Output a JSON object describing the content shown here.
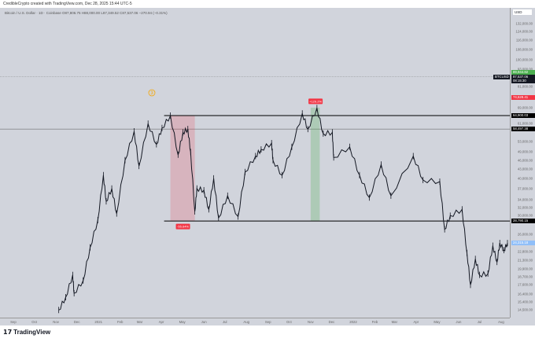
{
  "credit": "CredibleCrypto created with TradingView.com, Dec 28, 2025 15:44 UTC-5",
  "legend": "Bitcoin / U.S. Dollar · 1D · Coinbase  O87,806.75 H88,000.00 L87,349.52 C87,537.06 −270.94 (−0.31%)",
  "currency": "USD",
  "brand": "TradingView",
  "y_ticks": [
    "132,000.00",
    "124,000.00",
    "116,000.00",
    "108,000.00",
    "100,000.00",
    "93,000.00",
    "81,000.00",
    "69,000.00",
    "61,000.00",
    "53,000.00",
    "49,000.00",
    "46,000.00",
    "43,000.00",
    "40,000.00",
    "37,000.00",
    "34,000.00",
    "32,000.00",
    "30,000.00",
    "26,000.00",
    "22,800.00",
    "21,300.00",
    "19,900.00",
    "18,700.00",
    "17,600.00",
    "16,400.00",
    "15,400.00",
    "14,500.00"
  ],
  "price_labels": [
    {
      "text": "89,944.82",
      "price": 90500,
      "color": "#4caf50"
    },
    {
      "text": "BTCUSD",
      "price": 87537.06,
      "color": "#131722",
      "side": "left"
    },
    {
      "text": "87,537.06",
      "price": 87537.06,
      "color": "#131722"
    },
    {
      "text": "08:15:30",
      "price": 84800,
      "color": "#131722"
    },
    {
      "text": "74,628.41",
      "price": 74628.41,
      "color": "#f23645"
    },
    {
      "text": "64,900.03",
      "price": 64900.03,
      "color": "#000000"
    },
    {
      "text": "58,497.38",
      "price": 58497.38,
      "color": "#000000"
    },
    {
      "text": "28,790.15",
      "price": 28790.15,
      "color": "#000000"
    },
    {
      "text": "24,315.18",
      "price": 24315.18,
      "color": "#90bff9"
    }
  ],
  "x_ticks": [
    [
      "Sep",
      "2020-09-01"
    ],
    [
      "Oct",
      "2020-10-01"
    ],
    [
      "Nov",
      "2020-11-01"
    ],
    [
      "Dec",
      "2020-12-01"
    ],
    [
      "2021",
      "2021-01-01"
    ],
    [
      "Feb",
      "2021-02-01"
    ],
    [
      "Mar",
      "2021-03-01"
    ],
    [
      "Apr",
      "2021-04-01"
    ],
    [
      "May",
      "2021-05-01"
    ],
    [
      "Jun",
      "2021-06-01"
    ],
    [
      "Jul",
      "2021-07-01"
    ],
    [
      "Aug",
      "2021-08-01"
    ],
    [
      "Sep",
      "2021-09-01"
    ],
    [
      "Oct",
      "2021-10-01"
    ],
    [
      "Nov",
      "2021-11-01"
    ],
    [
      "Dec",
      "2021-12-01"
    ],
    [
      "2022",
      "2022-01-01"
    ],
    [
      "Feb",
      "2022-02-01"
    ],
    [
      "Mar",
      "2022-03-01"
    ],
    [
      "Apr",
      "2022-04-01"
    ],
    [
      "May",
      "2022-05-01"
    ],
    [
      "Jun",
      "2022-06-01"
    ],
    [
      "Jul",
      "2022-07-01"
    ],
    [
      "Aug",
      "2022-08-01"
    ]
  ],
  "annotations": {
    "wave_label": "3",
    "drop_pct": "-55.64%",
    "rise_pct": "+129.2%",
    "resistance": 64900.03,
    "support": 28790.15
  },
  "chart_data": {
    "type": "line",
    "title": "Bitcoin / U.S. Dollar · 1D · Coinbase",
    "scale": "log",
    "ylim": [
      14000,
      140000
    ],
    "series": [
      {
        "name": "BTCUSD",
        "points": [
          [
            "2020-11-05",
            14500
          ],
          [
            "2020-11-15",
            16000
          ],
          [
            "2020-11-25",
            19000
          ],
          [
            "2020-11-27",
            16500
          ],
          [
            "2020-12-10",
            18200
          ],
          [
            "2020-12-20",
            23500
          ],
          [
            "2020-12-31",
            29000
          ],
          [
            "2021-01-08",
            41000
          ],
          [
            "2021-01-12",
            33500
          ],
          [
            "2021-01-20",
            37000
          ],
          [
            "2021-01-27",
            30500
          ],
          [
            "2021-02-08",
            46000
          ],
          [
            "2021-02-21",
            57500
          ],
          [
            "2021-02-28",
            44000
          ],
          [
            "2021-03-13",
            61000
          ],
          [
            "2021-03-25",
            52000
          ],
          [
            "2021-04-02",
            59000
          ],
          [
            "2021-04-14",
            64900
          ],
          [
            "2021-04-25",
            48000
          ],
          [
            "2021-05-02",
            57000
          ],
          [
            "2021-05-09",
            58500
          ],
          [
            "2021-05-13",
            49000
          ],
          [
            "2021-05-19",
            31000
          ],
          [
            "2021-05-22",
            37000
          ],
          [
            "2021-06-01",
            36500
          ],
          [
            "2021-06-08",
            31500
          ],
          [
            "2021-06-15",
            40000
          ],
          [
            "2021-06-22",
            29500
          ],
          [
            "2021-07-05",
            35000
          ],
          [
            "2021-07-20",
            29800
          ],
          [
            "2021-07-30",
            42000
          ],
          [
            "2021-08-14",
            47500
          ],
          [
            "2021-08-22",
            50000
          ],
          [
            "2021-09-06",
            52500
          ],
          [
            "2021-09-08",
            46000
          ],
          [
            "2021-09-21",
            41000
          ],
          [
            "2021-10-05",
            51000
          ],
          [
            "2021-10-20",
            66000
          ],
          [
            "2021-10-28",
            58500
          ],
          [
            "2021-11-10",
            68800
          ],
          [
            "2021-11-19",
            56500
          ],
          [
            "2021-12-02",
            57000
          ],
          [
            "2021-12-04",
            47000
          ],
          [
            "2021-12-27",
            51000
          ],
          [
            "2022-01-10",
            41000
          ],
          [
            "2022-01-24",
            34500
          ],
          [
            "2022-02-10",
            44500
          ],
          [
            "2022-02-24",
            35000
          ],
          [
            "2022-03-28",
            47500
          ],
          [
            "2022-04-11",
            39500
          ],
          [
            "2022-05-05",
            39000
          ],
          [
            "2022-05-12",
            27000
          ],
          [
            "2022-05-20",
            30000
          ],
          [
            "2022-06-06",
            31500
          ],
          [
            "2022-06-13",
            22500
          ],
          [
            "2022-06-18",
            17600
          ],
          [
            "2022-06-25",
            21500
          ],
          [
            "2022-07-01",
            19000
          ],
          [
            "2022-07-13",
            19200
          ],
          [
            "2022-07-20",
            23800
          ],
          [
            "2022-07-26",
            21000
          ],
          [
            "2022-07-30",
            24300
          ],
          [
            "2022-08-05",
            23000
          ],
          [
            "2022-08-10",
            24300
          ]
        ]
      }
    ]
  },
  "colors": {
    "up": "#131722",
    "drop_zone": "#f2364533",
    "rise_zone": "#4caf5044",
    "wave": "#f7a600"
  }
}
